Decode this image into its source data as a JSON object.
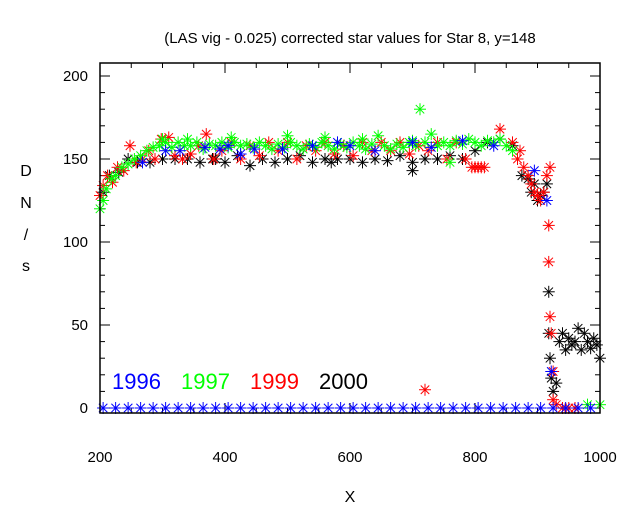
{
  "chart_data": {
    "type": "scatter",
    "title": "(LAS vig - 0.025) corrected star values for Star 8, y=148",
    "xlabel": "X",
    "ylabel": [
      "D",
      "N",
      "/",
      "s"
    ],
    "xlim": [
      200,
      1010
    ],
    "ylim": [
      -3,
      209
    ],
    "xticks": [
      200,
      400,
      600,
      800,
      1000
    ],
    "xtick_labels": [
      "200",
      "400",
      "600",
      "800",
      "1000"
    ],
    "yticks": [
      0,
      50,
      100,
      150,
      200
    ],
    "ytick_labels": [
      "0",
      "50",
      "100",
      "150",
      "200"
    ],
    "grid": false,
    "legend_position": "bottom-left",
    "marker": "asterisk",
    "series": [
      {
        "name": "1996",
        "color": "#0000ff",
        "points": [
          [
            205,
            0
          ],
          [
            225,
            0
          ],
          [
            245,
            0
          ],
          [
            265,
            0
          ],
          [
            285,
            0
          ],
          [
            305,
            0
          ],
          [
            325,
            0
          ],
          [
            345,
            0
          ],
          [
            365,
            0
          ],
          [
            385,
            0
          ],
          [
            405,
            0
          ],
          [
            425,
            0
          ],
          [
            445,
            0
          ],
          [
            465,
            0
          ],
          [
            485,
            0
          ],
          [
            505,
            0
          ],
          [
            525,
            0
          ],
          [
            545,
            0
          ],
          [
            565,
            0
          ],
          [
            585,
            0
          ],
          [
            605,
            0
          ],
          [
            625,
            0
          ],
          [
            645,
            0
          ],
          [
            665,
            0
          ],
          [
            685,
            0
          ],
          [
            705,
            0
          ],
          [
            725,
            0
          ],
          [
            745,
            0
          ],
          [
            765,
            0
          ],
          [
            785,
            0
          ],
          [
            805,
            0
          ],
          [
            825,
            0
          ],
          [
            845,
            0
          ],
          [
            865,
            0
          ],
          [
            885,
            0
          ],
          [
            905,
            0
          ],
          [
            925,
            0
          ],
          [
            945,
            0
          ],
          [
            965,
            0
          ],
          [
            985,
            0
          ],
          [
            1005,
            0
          ],
          [
            268,
            148
          ],
          [
            305,
            155
          ],
          [
            328,
            155
          ],
          [
            368,
            157
          ],
          [
            392,
            156
          ],
          [
            405,
            158
          ],
          [
            425,
            153
          ],
          [
            447,
            156
          ],
          [
            492,
            156
          ],
          [
            540,
            158
          ],
          [
            580,
            160
          ],
          [
            600,
            158
          ],
          [
            640,
            155
          ],
          [
            700,
            160
          ],
          [
            730,
            157
          ],
          [
            780,
            161
          ],
          [
            830,
            158
          ],
          [
            895,
            143
          ],
          [
            915,
            125
          ],
          [
            922,
            22
          ]
        ]
      },
      {
        "name": "1997",
        "color": "#00ff00",
        "points": [
          [
            200,
            120
          ],
          [
            205,
            125
          ],
          [
            210,
            132
          ],
          [
            218,
            138
          ],
          [
            225,
            140
          ],
          [
            235,
            145
          ],
          [
            245,
            147
          ],
          [
            255,
            150
          ],
          [
            265,
            152
          ],
          [
            275,
            155
          ],
          [
            285,
            157
          ],
          [
            295,
            158
          ],
          [
            305,
            160
          ],
          [
            315,
            157
          ],
          [
            325,
            160
          ],
          [
            335,
            158
          ],
          [
            345,
            158
          ],
          [
            355,
            160
          ],
          [
            365,
            156
          ],
          [
            375,
            159
          ],
          [
            385,
            158
          ],
          [
            395,
            160
          ],
          [
            405,
            157
          ],
          [
            415,
            160
          ],
          [
            425,
            158
          ],
          [
            435,
            159
          ],
          [
            445,
            157
          ],
          [
            455,
            160
          ],
          [
            465,
            158
          ],
          [
            475,
            156
          ],
          [
            485,
            159
          ],
          [
            495,
            157
          ],
          [
            505,
            160
          ],
          [
            515,
            158
          ],
          [
            525,
            156
          ],
          [
            535,
            159
          ],
          [
            545,
            157
          ],
          [
            555,
            160
          ],
          [
            565,
            158
          ],
          [
            575,
            156
          ],
          [
            585,
            159
          ],
          [
            595,
            157
          ],
          [
            605,
            160
          ],
          [
            615,
            158
          ],
          [
            625,
            156
          ],
          [
            635,
            159
          ],
          [
            645,
            164
          ],
          [
            655,
            158
          ],
          [
            665,
            156
          ],
          [
            675,
            159
          ],
          [
            685,
            157
          ],
          [
            695,
            160
          ],
          [
            705,
            158
          ],
          [
            712,
            180
          ],
          [
            720,
            160
          ],
          [
            730,
            165
          ],
          [
            740,
            158
          ],
          [
            750,
            160
          ],
          [
            760,
            158
          ],
          [
            770,
            161
          ],
          [
            780,
            159
          ],
          [
            790,
            162
          ],
          [
            800,
            160
          ],
          [
            810,
            158
          ],
          [
            820,
            161
          ],
          [
            830,
            160
          ],
          [
            840,
            162
          ],
          [
            850,
            158
          ],
          [
            860,
            155
          ],
          [
            300,
            162
          ],
          [
            340,
            162
          ],
          [
            410,
            163
          ],
          [
            500,
            164
          ],
          [
            560,
            163
          ],
          [
            620,
            162
          ],
          [
            700,
            161
          ],
          [
            760,
            148
          ],
          [
            980,
            2
          ],
          [
            1000,
            2
          ]
        ]
      },
      {
        "name": "1999",
        "color": "#ff0000",
        "points": [
          [
            200,
            128
          ],
          [
            205,
            134
          ],
          [
            212,
            140
          ],
          [
            220,
            136
          ],
          [
            228,
            145
          ],
          [
            238,
            143
          ],
          [
            248,
            158
          ],
          [
            258,
            148
          ],
          [
            268,
            150
          ],
          [
            278,
            155
          ],
          [
            288,
            150
          ],
          [
            298,
            162
          ],
          [
            310,
            163
          ],
          [
            320,
            152
          ],
          [
            332,
            150
          ],
          [
            345,
            153
          ],
          [
            358,
            158
          ],
          [
            370,
            165
          ],
          [
            382,
            150
          ],
          [
            395,
            155
          ],
          [
            410,
            160
          ],
          [
            425,
            150
          ],
          [
            440,
            158
          ],
          [
            455,
            152
          ],
          [
            470,
            160
          ],
          [
            485,
            155
          ],
          [
            500,
            160
          ],
          [
            515,
            150
          ],
          [
            530,
            158
          ],
          [
            545,
            155
          ],
          [
            560,
            160
          ],
          [
            575,
            153
          ],
          [
            590,
            158
          ],
          [
            605,
            152
          ],
          [
            620,
            160
          ],
          [
            635,
            155
          ],
          [
            650,
            160
          ],
          [
            665,
            155
          ],
          [
            680,
            160
          ],
          [
            695,
            153
          ],
          [
            710,
            158
          ],
          [
            725,
            155
          ],
          [
            740,
            160
          ],
          [
            755,
            150
          ],
          [
            770,
            160
          ],
          [
            785,
            150
          ],
          [
            795,
            145
          ],
          [
            800,
            145
          ],
          [
            805,
            145
          ],
          [
            810,
            145
          ],
          [
            815,
            145
          ],
          [
            840,
            168
          ],
          [
            860,
            160
          ],
          [
            868,
            150
          ],
          [
            872,
            155
          ],
          [
            878,
            145
          ],
          [
            885,
            140
          ],
          [
            890,
            135
          ],
          [
            895,
            130
          ],
          [
            900,
            128
          ],
          [
            905,
            125
          ],
          [
            910,
            130
          ],
          [
            915,
            140
          ],
          [
            920,
            145
          ],
          [
            918,
            110
          ],
          [
            918,
            88
          ],
          [
            920,
            55
          ],
          [
            922,
            45
          ],
          [
            925,
            22
          ],
          [
            925,
            5
          ],
          [
            930,
            2
          ],
          [
            940,
            0
          ],
          [
            950,
            0
          ],
          [
            960,
            0
          ],
          [
            720,
            11
          ]
        ]
      },
      {
        "name": "2000",
        "color": "#000000",
        "points": [
          [
            205,
            130
          ],
          [
            215,
            140
          ],
          [
            230,
            142
          ],
          [
            245,
            150
          ],
          [
            260,
            148
          ],
          [
            280,
            148
          ],
          [
            300,
            150
          ],
          [
            320,
            150
          ],
          [
            340,
            150
          ],
          [
            360,
            148
          ],
          [
            380,
            150
          ],
          [
            400,
            148
          ],
          [
            420,
            152
          ],
          [
            440,
            146
          ],
          [
            460,
            150
          ],
          [
            480,
            148
          ],
          [
            500,
            150
          ],
          [
            520,
            152
          ],
          [
            540,
            148
          ],
          [
            560,
            150
          ],
          [
            580,
            150
          ],
          [
            600,
            150
          ],
          [
            620,
            148
          ],
          [
            640,
            150
          ],
          [
            660,
            149
          ],
          [
            680,
            152
          ],
          [
            700,
            148
          ],
          [
            720,
            150
          ],
          [
            740,
            150
          ],
          [
            760,
            152
          ],
          [
            780,
            150
          ],
          [
            800,
            155
          ],
          [
            820,
            160
          ],
          [
            840,
            162
          ],
          [
            860,
            158
          ],
          [
            875,
            140
          ],
          [
            885,
            138
          ],
          [
            890,
            130
          ],
          [
            895,
            135
          ],
          [
            900,
            125
          ],
          [
            905,
            128
          ],
          [
            910,
            130
          ],
          [
            915,
            135
          ],
          [
            918,
            70
          ],
          [
            918,
            45
          ],
          [
            920,
            30
          ],
          [
            922,
            18
          ],
          [
            925,
            10
          ],
          [
            930,
            15
          ],
          [
            935,
            40
          ],
          [
            940,
            45
          ],
          [
            945,
            35
          ],
          [
            950,
            42
          ],
          [
            955,
            38
          ],
          [
            960,
            40
          ],
          [
            965,
            48
          ],
          [
            970,
            35
          ],
          [
            975,
            45
          ],
          [
            980,
            40
          ],
          [
            985,
            36
          ],
          [
            990,
            42
          ],
          [
            995,
            38
          ],
          [
            1000,
            30
          ],
          [
            1005,
            40
          ],
          [
            1008,
            35
          ],
          [
            385,
            150
          ],
          [
            570,
            148
          ],
          [
            700,
            143
          ]
        ]
      }
    ]
  }
}
